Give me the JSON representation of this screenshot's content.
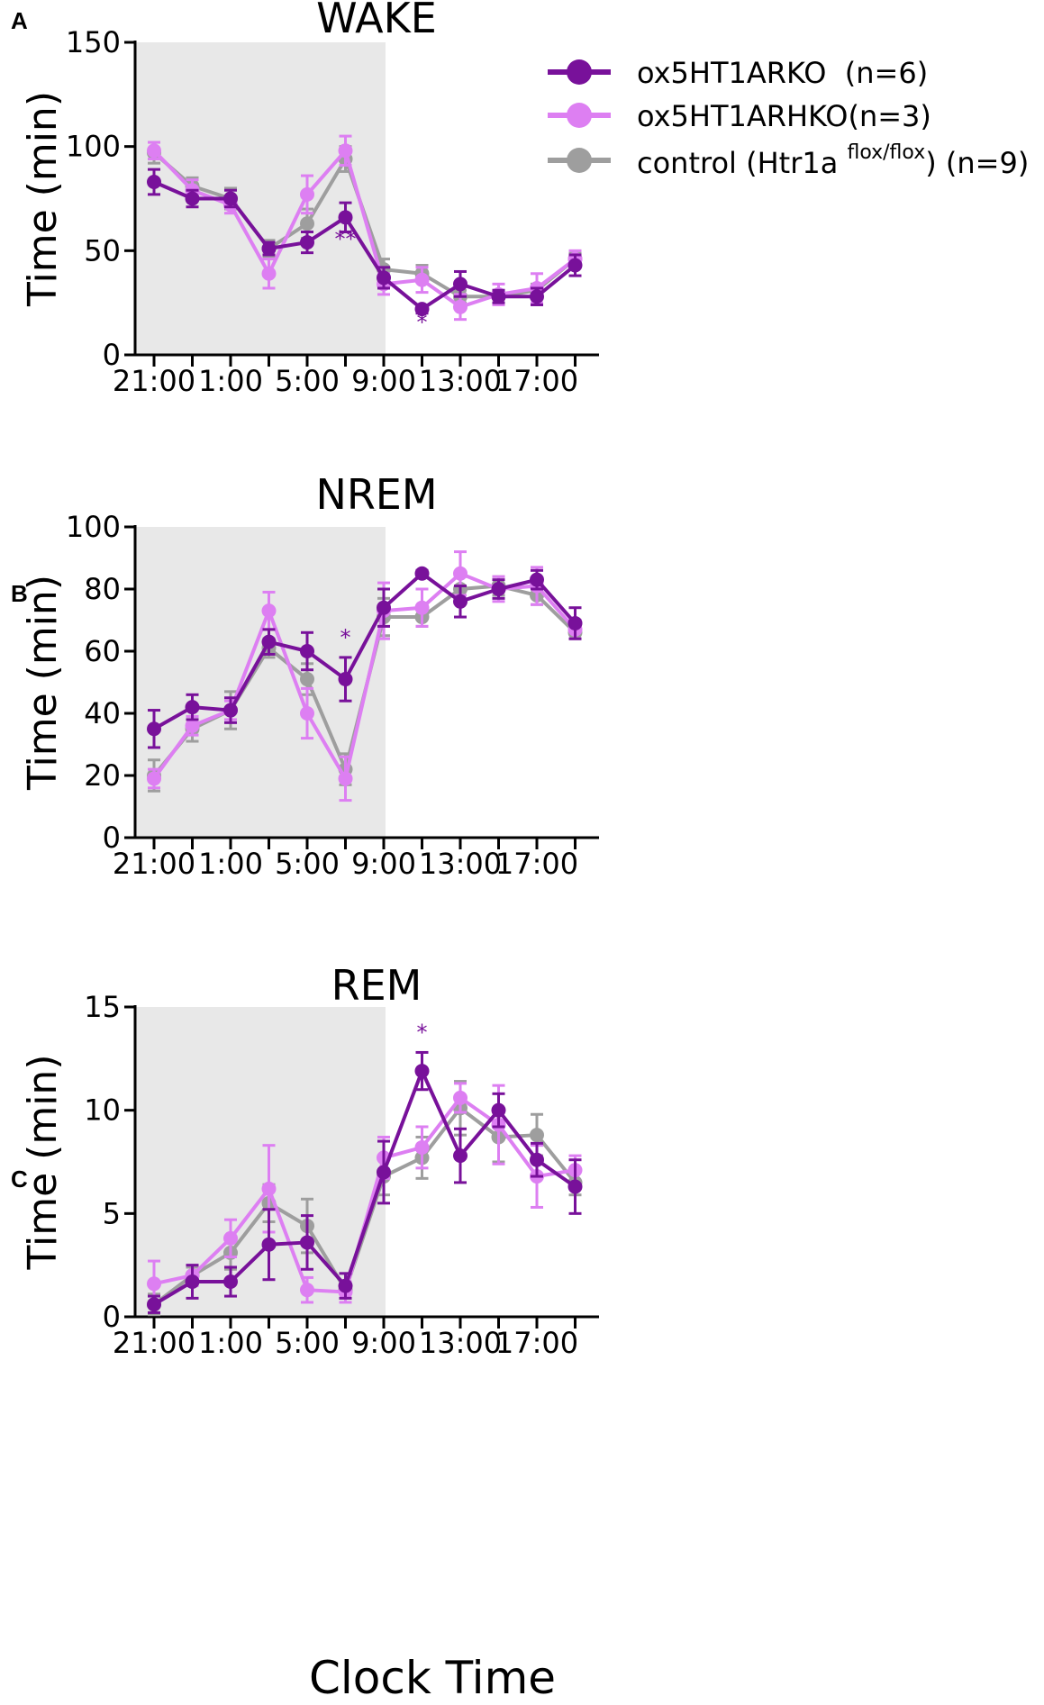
{
  "figure": {
    "xlabel": "Clock Time",
    "legend": [
      {
        "name": "ox5HT1ARKO  (n=6)",
        "color": "#78119a"
      },
      {
        "name": "ox5HT1ARHKO(n=3)",
        "color": "#dd7ff2"
      },
      {
        "name_pre": "control (Htr1a ",
        "name_sup": "flox/flox",
        "name_post": ") (n=9)",
        "color": "#9e9e9e"
      }
    ],
    "dark_period_shade": "#e8e8e8"
  },
  "chart_data": [
    {
      "type": "line",
      "panel": "A",
      "title": "WAKE",
      "xlabel": "Clock Time",
      "ylabel": "Time (min)",
      "ylim": [
        0,
        150
      ],
      "yticks": [
        0,
        50,
        100,
        150
      ],
      "xtick_labels": [
        "21:00",
        "1:00",
        "5:00",
        "9:00",
        "13:00",
        "17:00"
      ],
      "shaded_range": [
        "21:00",
        "9:00"
      ],
      "x": [
        "21:00",
        "23:00",
        "1:00",
        "3:00",
        "5:00",
        "7:00",
        "9:00",
        "11:00",
        "13:00",
        "15:00",
        "17:00",
        "19:00"
      ],
      "series": [
        {
          "name": "ox5HT1ARKO (n=6)",
          "color": "#78119a",
          "values": [
            83,
            75,
            75,
            51,
            54,
            66,
            37,
            22,
            34,
            28,
            28,
            43
          ],
          "errors": [
            6,
            4,
            4,
            3,
            5,
            7,
            5,
            2,
            6,
            3,
            4,
            5
          ]
        },
        {
          "name": "ox5HT1ARHKO (n=3)",
          "color": "#dd7ff2",
          "values": [
            98,
            79,
            72,
            39,
            77,
            98,
            34,
            36,
            23,
            29,
            32,
            46
          ],
          "errors": [
            4,
            5,
            4,
            7,
            9,
            7,
            5,
            6,
            6,
            5,
            7,
            4
          ]
        },
        {
          "name": "control (Htr1a flox/flox) (n=9)",
          "color": "#9e9e9e",
          "values": [
            97,
            81,
            75,
            51,
            63,
            94,
            41,
            39,
            28,
            28,
            31,
            46
          ],
          "errors": [
            5,
            4,
            5,
            4,
            7,
            6,
            5,
            4,
            3,
            3,
            3,
            3
          ]
        }
      ],
      "annotations": [
        {
          "x": "7:00",
          "text": "**",
          "y": 52
        },
        {
          "x": "11:00",
          "text": "*",
          "y": 12
        }
      ]
    },
    {
      "type": "line",
      "panel": "B",
      "title": "NREM",
      "xlabel": "Clock Time",
      "ylabel": "Time (min)",
      "ylim": [
        0,
        100
      ],
      "yticks": [
        0,
        20,
        40,
        60,
        80,
        100
      ],
      "xtick_labels": [
        "21:00",
        "1:00",
        "5:00",
        "9:00",
        "13:00",
        "17:00"
      ],
      "shaded_range": [
        "21:00",
        "9:00"
      ],
      "x": [
        "21:00",
        "23:00",
        "1:00",
        "3:00",
        "5:00",
        "7:00",
        "9:00",
        "11:00",
        "13:00",
        "15:00",
        "17:00",
        "19:00"
      ],
      "series": [
        {
          "name": "ox5HT1ARKO (n=6)",
          "color": "#78119a",
          "values": [
            35,
            42,
            41,
            63,
            60,
            51,
            74,
            85,
            76,
            80,
            83,
            69
          ],
          "errors": [
            6,
            4,
            4,
            4,
            6,
            7,
            6,
            1,
            5,
            3,
            3,
            5
          ]
        },
        {
          "name": "ox5HT1ARHKO (n=3)",
          "color": "#dd7ff2",
          "values": [
            19,
            36,
            41,
            73,
            40,
            19,
            73,
            74,
            85,
            80,
            81,
            67
          ],
          "errors": [
            3,
            3,
            3,
            6,
            8,
            7,
            9,
            6,
            7,
            4,
            6,
            3
          ]
        },
        {
          "name": "control (Htr1a flox/flox) (n=9)",
          "color": "#9e9e9e",
          "values": [
            20,
            35,
            41,
            61,
            51,
            22,
            71,
            71,
            80,
            81,
            78,
            66
          ],
          "errors": [
            5,
            4,
            6,
            3,
            5,
            5,
            6,
            3,
            4,
            3,
            3,
            2
          ]
        }
      ],
      "annotations": [
        {
          "x": "7:00",
          "text": "*",
          "y": 62
        }
      ]
    },
    {
      "type": "line",
      "panel": "C",
      "title": "REM",
      "xlabel": "Clock Time",
      "ylabel": "Time (min)",
      "ylim": [
        0,
        15
      ],
      "yticks": [
        0,
        5,
        10,
        15
      ],
      "xtick_labels": [
        "21:00",
        "1:00",
        "5:00",
        "9:00",
        "13:00",
        "17:00"
      ],
      "shaded_range": [
        "21:00",
        "9:00"
      ],
      "x": [
        "21:00",
        "23:00",
        "1:00",
        "3:00",
        "5:00",
        "7:00",
        "9:00",
        "11:00",
        "13:00",
        "15:00",
        "17:00",
        "19:00"
      ],
      "series": [
        {
          "name": "ox5HT1ARKO (n=6)",
          "color": "#78119a",
          "values": [
            0.6,
            1.7,
            1.7,
            3.5,
            3.6,
            1.5,
            7.0,
            11.9,
            7.8,
            10.0,
            7.6,
            6.3
          ],
          "errors": [
            0.4,
            0.8,
            0.7,
            1.7,
            1.3,
            0.6,
            1.5,
            0.9,
            1.3,
            0.8,
            0.8,
            1.3
          ]
        },
        {
          "name": "ox5HT1ARHKO (n=3)",
          "color": "#dd7ff2",
          "values": [
            1.6,
            2.0,
            3.8,
            6.2,
            1.3,
            1.2,
            7.7,
            8.2,
            10.6,
            9.3,
            6.8,
            7.1
          ],
          "errors": [
            1.1,
            0.5,
            0.9,
            2.1,
            0.6,
            0.5,
            1.0,
            1.0,
            0.7,
            1.9,
            1.5,
            0.7
          ]
        },
        {
          "name": "control (Htr1a flox/flox) (n=9)",
          "color": "#9e9e9e",
          "values": [
            0.6,
            2.0,
            3.1,
            5.5,
            4.4,
            1.3,
            6.8,
            7.7,
            10.1,
            8.7,
            8.8,
            6.5
          ],
          "errors": [
            0.5,
            0.4,
            0.8,
            0.9,
            1.3,
            0.4,
            0.9,
            1.0,
            1.3,
            1.2,
            1.0,
            0.6
          ]
        }
      ],
      "annotations": [
        {
          "x": "11:00",
          "text": "*",
          "y": 13.4
        }
      ]
    }
  ]
}
